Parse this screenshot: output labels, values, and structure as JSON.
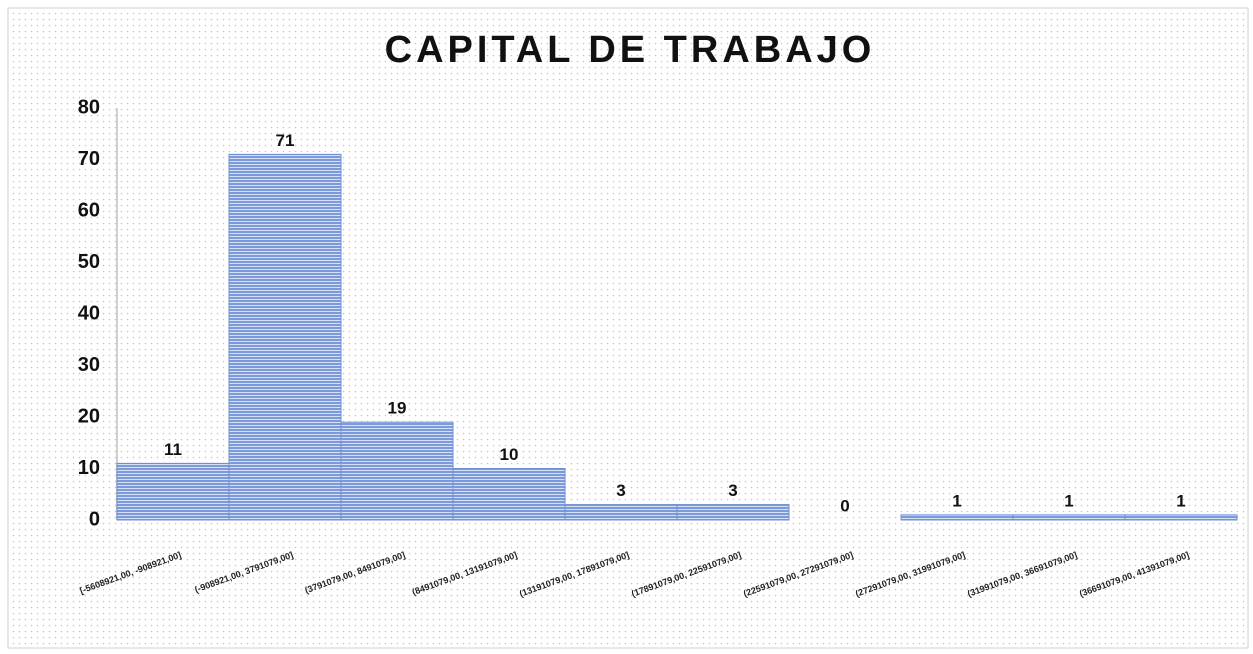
{
  "chart_data": {
    "type": "bar",
    "title": "CAPITAL DE TRABAJO",
    "categories": [
      "[-5608921,00, -908921,00]",
      "(-908921,00, 3791079,00]",
      "(3791079,00, 8491079,00]",
      "(8491079,00, 13191079,00]",
      "(13191079,00, 17891079,00]",
      "(17891079,00, 22591079,00]",
      "(22591079,00, 27291079,00]",
      "(27291079,00, 31991079,00]",
      "(31991079,00, 36691079,00]",
      "(36691079,00, 41391079,00]"
    ],
    "values": [
      11,
      71,
      19,
      10,
      3,
      3,
      0,
      1,
      1,
      1
    ],
    "color": "#6f8fd6",
    "ylim": [
      0,
      80
    ],
    "yticks": [
      0,
      10,
      20,
      30,
      40,
      50,
      60,
      70,
      80
    ],
    "grid": false
  }
}
